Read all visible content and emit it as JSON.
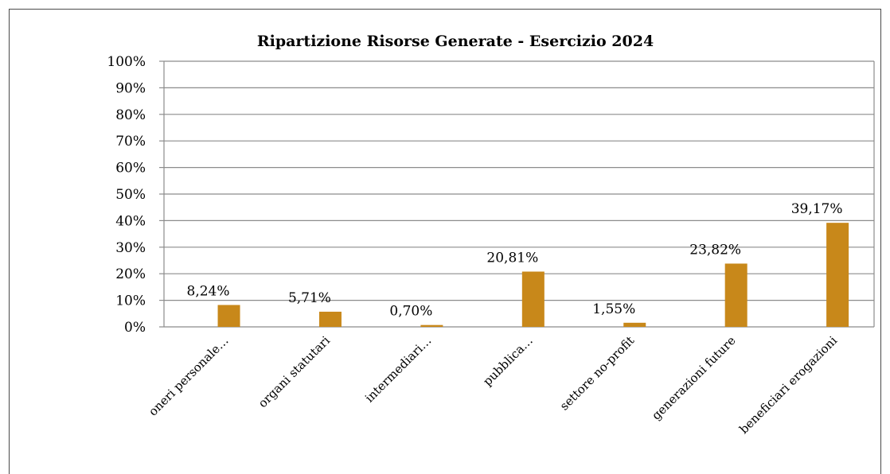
{
  "chart_data": {
    "type": "bar",
    "title": "Ripartizione Risorse Generate - Esercizio 2024",
    "xlabel": "",
    "ylabel": "",
    "ylim": [
      0,
      100
    ],
    "yticks": [
      "0%",
      "10%",
      "20%",
      "30%",
      "40%",
      "50%",
      "60%",
      "70%",
      "80%",
      "90%",
      "100%"
    ],
    "grid": true,
    "legend": "none",
    "bar_color": "#C8881A",
    "categories": [
      "oneri  personale…",
      "organi statutari",
      "intermediari…",
      "pubblica…",
      "settore no-profit",
      "generazioni future",
      "beneficiari erogazioni"
    ],
    "values": [
      8.24,
      5.71,
      0.7,
      20.81,
      1.55,
      23.82,
      39.17
    ],
    "data_labels": [
      "8,24%",
      "5,71%",
      "0,70%",
      "20,81%",
      "1,55%",
      "23,82%",
      "39,17%"
    ]
  }
}
